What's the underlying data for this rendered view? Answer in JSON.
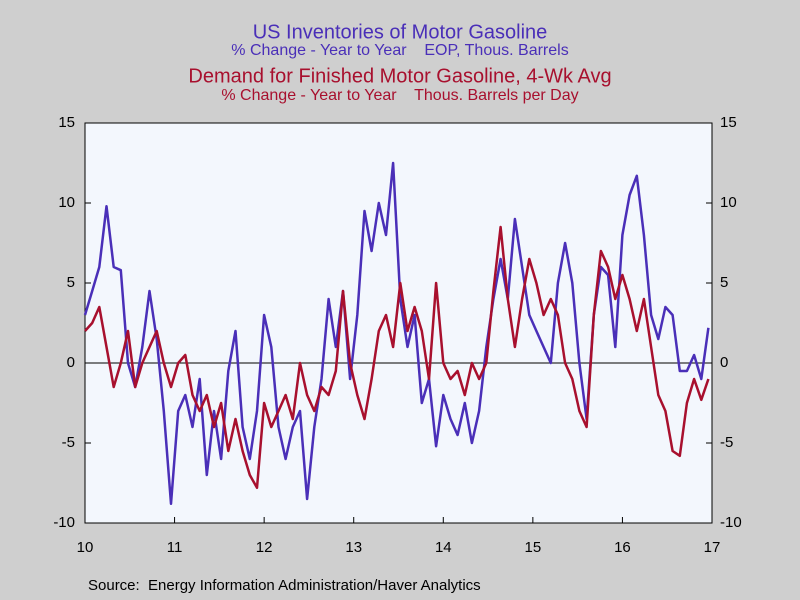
{
  "chart_data": {
    "type": "line",
    "source": "Source:  Energy Information Administration/Haver Analytics",
    "x": [
      10,
      10.08,
      10.16,
      10.24,
      10.32,
      10.4,
      10.48,
      10.56,
      10.64,
      10.72,
      10.8,
      10.88,
      10.96,
      11.04,
      11.12,
      11.2,
      11.28,
      11.36,
      11.44,
      11.52,
      11.6,
      11.68,
      11.76,
      11.84,
      11.92,
      12,
      12.08,
      12.16,
      12.24,
      12.32,
      12.4,
      12.48,
      12.56,
      12.64,
      12.72,
      12.8,
      12.88,
      12.96,
      13.04,
      13.12,
      13.2,
      13.28,
      13.36,
      13.44,
      13.52,
      13.6,
      13.68,
      13.76,
      13.84,
      13.92,
      14,
      14.08,
      14.16,
      14.24,
      14.32,
      14.4,
      14.48,
      14.56,
      14.64,
      14.72,
      14.8,
      14.88,
      14.96,
      15.04,
      15.12,
      15.2,
      15.28,
      15.36,
      15.44,
      15.52,
      15.6,
      15.68,
      15.76,
      15.84,
      15.92,
      16,
      16.08,
      16.16,
      16.24,
      16.32,
      16.4,
      16.48,
      16.56,
      16.64,
      16.72,
      16.8,
      16.88,
      16.96
    ],
    "series": [
      {
        "name": "US Inventories of Motor Gasoline",
        "subtitle": "% Change - Year to Year    EOP, Thous. Barrels",
        "color": "#4a2fb8",
        "values": [
          3,
          4.5,
          6,
          9.8,
          6,
          5.8,
          0,
          -1.5,
          1,
          4.5,
          1.5,
          -3,
          -8.8,
          -3,
          -2,
          -4,
          -1,
          -7,
          -3,
          -6,
          -0.5,
          2,
          -4,
          -6,
          -3,
          3,
          1,
          -4,
          -6,
          -4,
          -3,
          -8.5,
          -4,
          -1,
          4,
          1,
          4.5,
          -1,
          3,
          9.5,
          7,
          10,
          8,
          12.5,
          4,
          1,
          3,
          -2.5,
          -1,
          -5.2,
          -2,
          -3.5,
          -4.5,
          -2.5,
          -5,
          -3,
          1,
          4,
          6.5,
          4,
          9,
          6,
          3,
          2,
          1,
          0,
          5,
          7.5,
          5,
          0,
          -3.5,
          3,
          6,
          5.5,
          1,
          8,
          10.5,
          11.7,
          8,
          3,
          1.5,
          3.5,
          3,
          -0.5,
          -0.5,
          0.5,
          -1,
          2.2
        ]
      },
      {
        "name": "Demand for Finished Motor Gasoline, 4-Wk Avg",
        "subtitle": "% Change - Year to Year    Thous. Barrels per Day",
        "color": "#a8102e",
        "values": [
          2,
          2.5,
          3.5,
          1,
          -1.5,
          0,
          2,
          -1.5,
          0,
          1,
          2,
          0,
          -1.5,
          0,
          0.5,
          -2,
          -3,
          -2,
          -4,
          -2.5,
          -5.5,
          -3.5,
          -5.5,
          -7,
          -7.8,
          -2.5,
          -4,
          -3,
          -2,
          -3.5,
          0,
          -2,
          -3,
          -1.5,
          -2,
          -0.5,
          4.5,
          0,
          -2,
          -3.5,
          -1,
          2,
          3,
          1,
          5,
          2,
          3.5,
          2,
          -1,
          5,
          0,
          -1,
          -0.5,
          -2,
          0,
          -1,
          0,
          4.5,
          8.5,
          4,
          1,
          4,
          6.5,
          5,
          3,
          4,
          3,
          0,
          -1,
          -3,
          -4,
          3,
          7,
          6,
          4,
          5.5,
          4,
          2,
          4,
          1,
          -2,
          -3,
          -5.5,
          -5.8,
          -2.5,
          -1,
          -2.3,
          -1
        ]
      }
    ],
    "xlim": [
      10,
      17
    ],
    "xticks": [
      10,
      11,
      12,
      13,
      14,
      15,
      16,
      17
    ],
    "ylim": [
      -10,
      15
    ],
    "yticks": [
      -10,
      -5,
      0,
      5,
      10,
      15
    ],
    "y2lim": [
      -10,
      15
    ],
    "y2ticks": [
      -10,
      -5,
      0,
      5,
      10,
      15
    ]
  }
}
